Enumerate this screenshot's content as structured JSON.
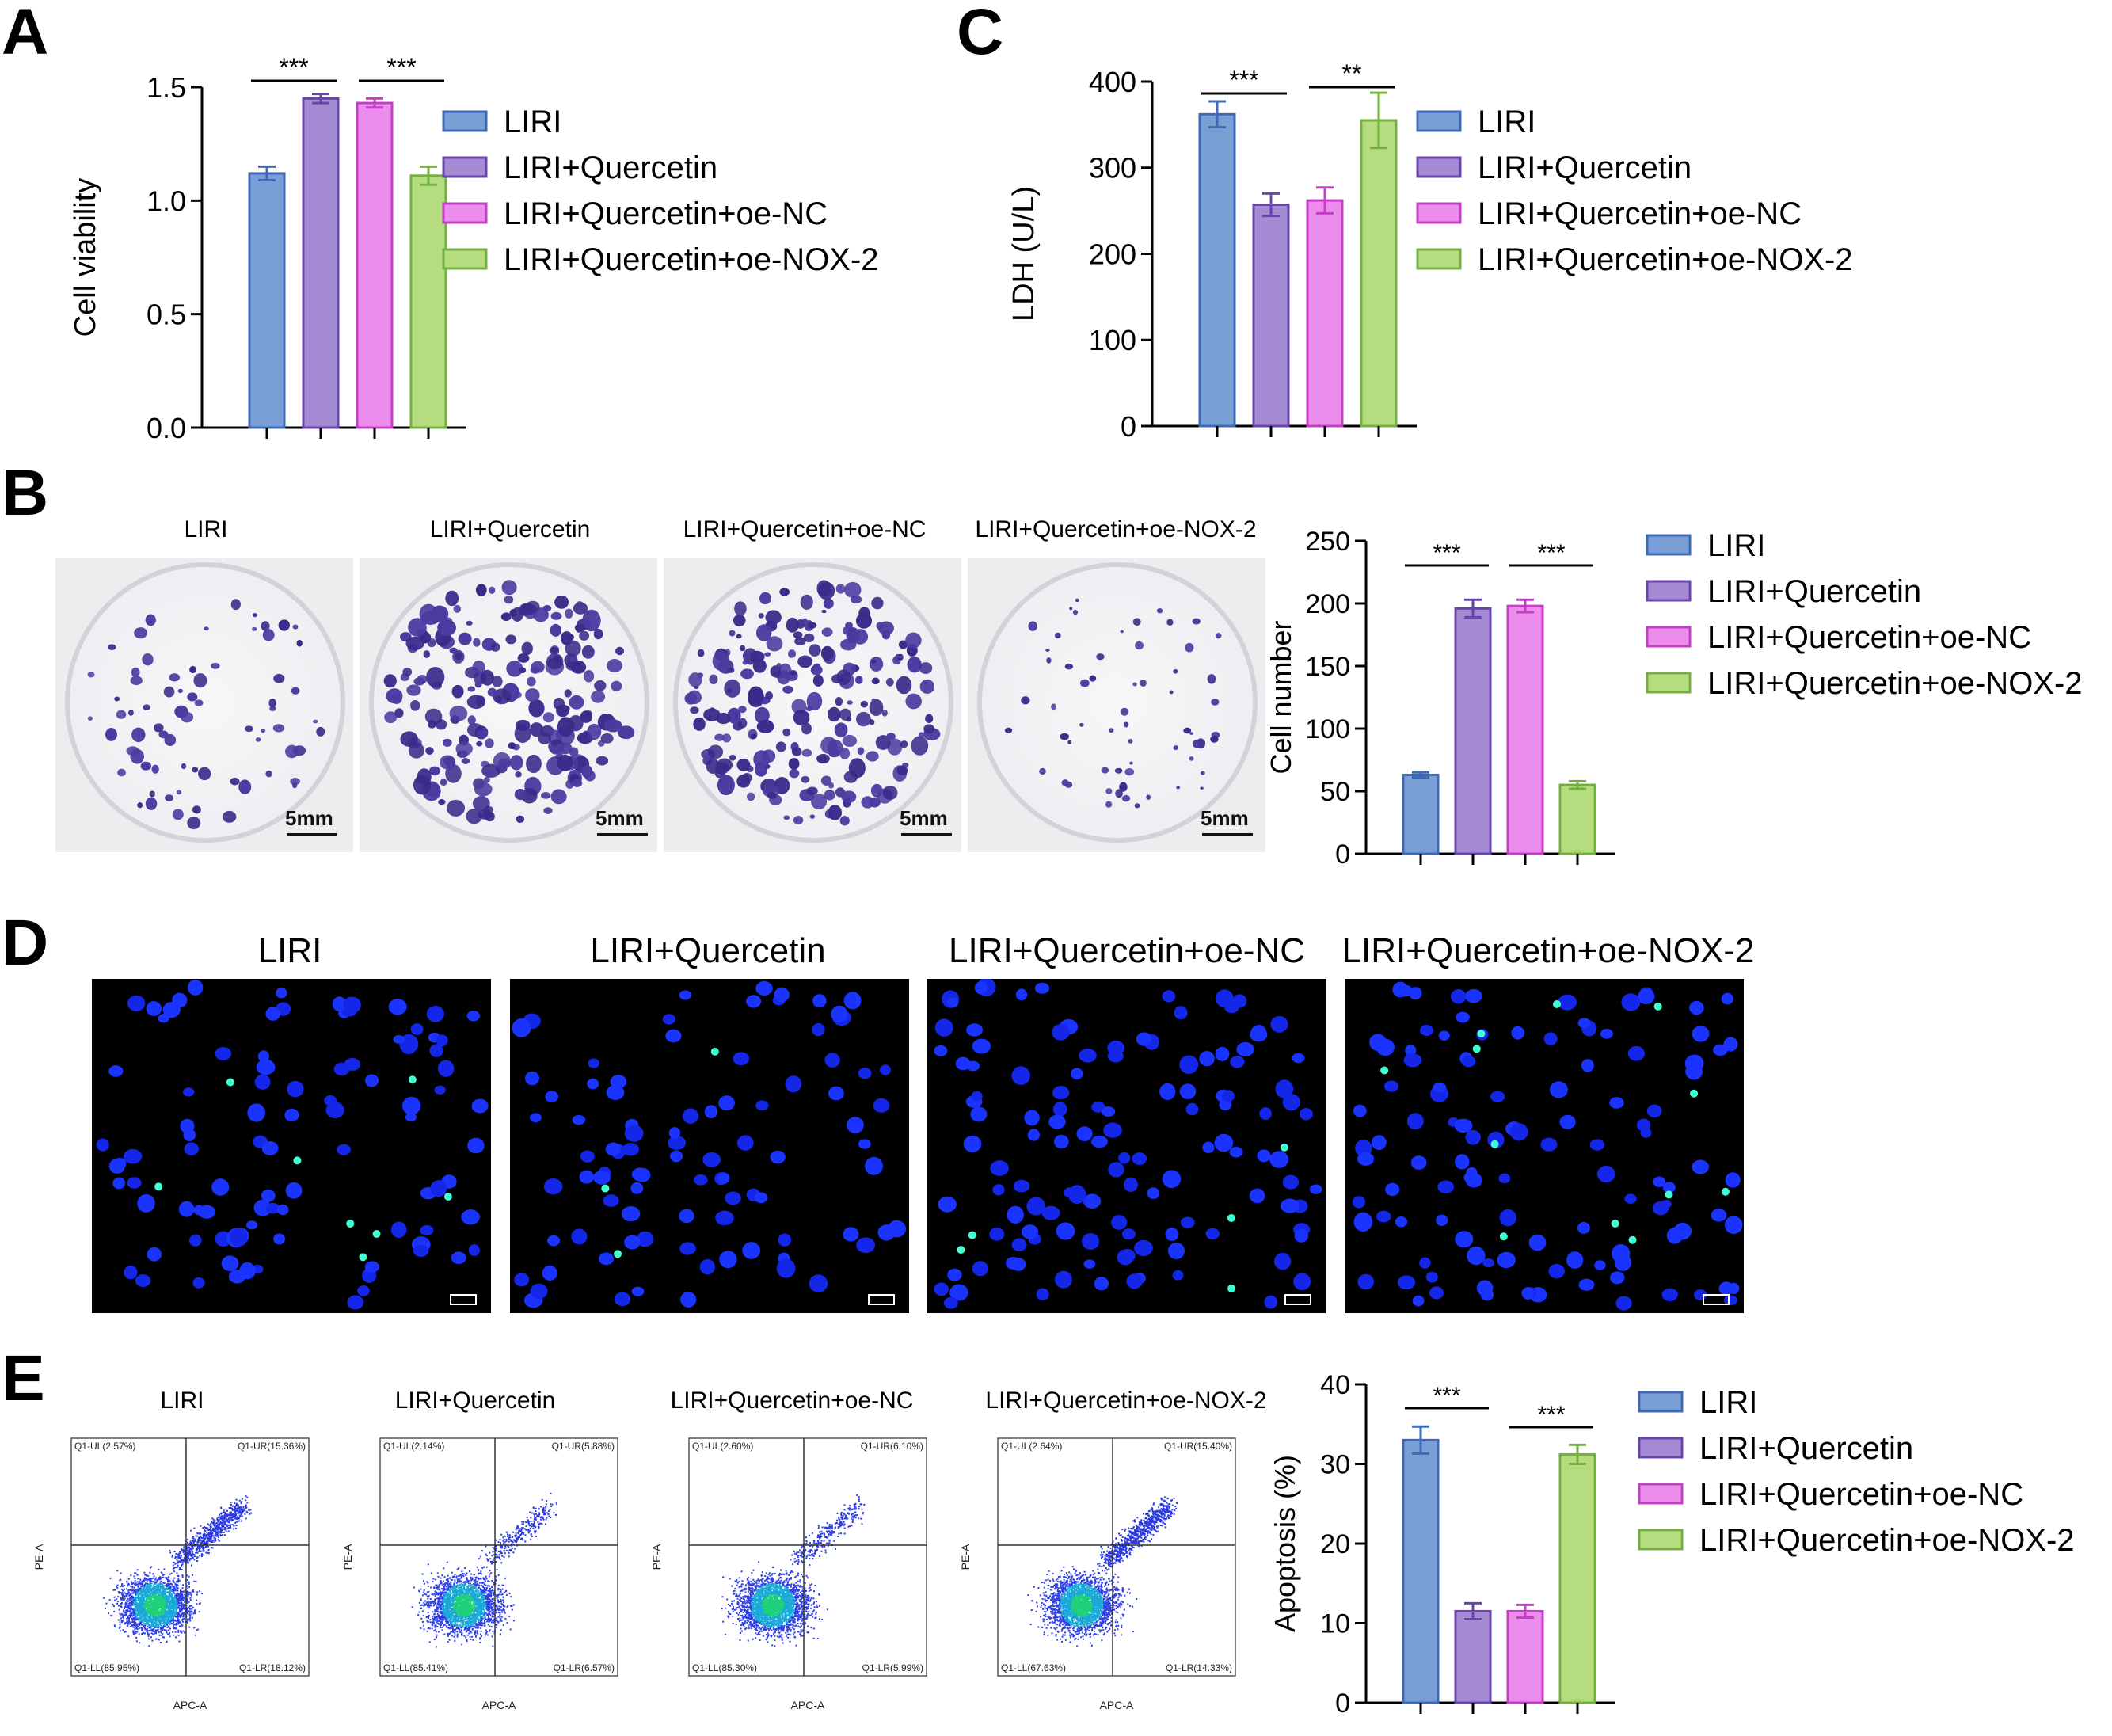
{
  "panels": {
    "A": "A",
    "B": "B",
    "C": "C",
    "D": "D",
    "E": "E"
  },
  "colors": {
    "LIRI": "#7a9fd6",
    "LIRI+Quercetin": "#a58bd4",
    "LIRI+Quercetin+oe-NC": "#ec8cec",
    "LIRI+Quercetin+oe-NOX-2": "#b5dd7f"
  },
  "edge_colors": {
    "LIRI": "#3f69b5",
    "LIRI+Quercetin": "#6a43ad",
    "LIRI+Quercetin+oe-NC": "#c53fc6",
    "LIRI+Quercetin+oe-NOX-2": "#73b03f"
  },
  "legend": [
    "LIRI",
    "LIRI+Quercetin",
    "LIRI+Quercetin+oe-NC",
    "LIRI+Quercetin+oe-NOX-2"
  ],
  "chart_data": [
    {
      "id": "A",
      "type": "bar",
      "categories": [
        "LIRI",
        "LIRI+Quercetin",
        "LIRI+Quercetin+oe-NC",
        "LIRI+Quercetin+oe-NOX-2"
      ],
      "values": [
        1.12,
        1.45,
        1.43,
        1.11
      ],
      "errors": [
        0.03,
        0.02,
        0.02,
        0.04
      ],
      "ylabel": "Cell viability",
      "ylim": [
        0,
        1.5
      ],
      "yticks": [
        "0.0",
        "0.5",
        "1.0",
        "1.5"
      ],
      "yticks_values": [
        0,
        0.5,
        1.0,
        1.5
      ],
      "significance": [
        {
          "pair": [
            0,
            1
          ],
          "label": "***"
        },
        {
          "pair": [
            2,
            3
          ],
          "label": "***"
        }
      ]
    },
    {
      "id": "C",
      "type": "bar",
      "categories": [
        "LIRI",
        "LIRI+Quercetin",
        "LIRI+Quercetin+oe-NC",
        "LIRI+Quercetin+oe-NOX-2"
      ],
      "values": [
        362,
        257,
        262,
        355
      ],
      "errors": [
        15,
        13,
        15,
        32
      ],
      "ylabel": "LDH (U/L)",
      "ylim": [
        0,
        400
      ],
      "yticks": [
        "0",
        "100",
        "200",
        "300",
        "400"
      ],
      "yticks_values": [
        0,
        100,
        200,
        300,
        400
      ],
      "significance": [
        {
          "pair": [
            0,
            1
          ],
          "label": "***"
        },
        {
          "pair": [
            2,
            3
          ],
          "label": "**"
        }
      ]
    },
    {
      "id": "B",
      "type": "bar",
      "categories": [
        "LIRI",
        "LIRI+Quercetin",
        "LIRI+Quercetin+oe-NC",
        "LIRI+Quercetin+oe-NOX-2"
      ],
      "values": [
        63,
        196,
        198,
        55
      ],
      "errors": [
        2,
        7,
        5,
        3
      ],
      "ylabel": "Cell number",
      "ylim": [
        0,
        250
      ],
      "yticks": [
        "0",
        "50",
        "100",
        "150",
        "200",
        "250"
      ],
      "yticks_values": [
        0,
        50,
        100,
        150,
        200,
        250
      ],
      "significance": [
        {
          "pair": [
            0,
            1
          ],
          "label": "***"
        },
        {
          "pair": [
            2,
            3
          ],
          "label": "***"
        }
      ]
    },
    {
      "id": "E",
      "type": "bar",
      "categories": [
        "LIRI",
        "LIRI+Quercetin",
        "LIRI+Quercetin+oe-NC",
        "LIRI+Quercetin+oe-NOX-2"
      ],
      "values": [
        33,
        11.5,
        11.5,
        31.2
      ],
      "errors": [
        1.7,
        1.0,
        0.8,
        1.2
      ],
      "ylabel": "Apoptosis (%)",
      "ylim": [
        0,
        40
      ],
      "yticks": [
        "0",
        "10",
        "20",
        "30",
        "40"
      ],
      "yticks_values": [
        0,
        10,
        20,
        30,
        40
      ],
      "significance": [
        {
          "pair": [
            0,
            1
          ],
          "label": "***"
        },
        {
          "pair": [
            2,
            3
          ],
          "label": "***"
        }
      ]
    }
  ],
  "colony_labels": [
    "LIRI",
    "LIRI+Quercetin",
    "LIRI+Quercetin+oe-NC",
    "LIRI+Quercetin+oe-NOX-2"
  ],
  "colony_scale": "5mm",
  "fluorescence_labels": [
    "LIRI",
    "LIRI+Quercetin",
    "LIRI+Quercetin+oe-NC",
    "LIRI+Quercetin+oe-NOX-2"
  ],
  "flow": {
    "labels": [
      "LIRI",
      "LIRI+Quercetin",
      "LIRI+Quercetin+oe-NC",
      "LIRI+Quercetin+oe-NOX-2"
    ],
    "xlabel": "APC-A",
    "ylabel": "PE-A",
    "quadrants": [
      {
        "UL": "Q1-UL(2.57%)",
        "UR": "Q1-UR(15.36%)",
        "LL": "Q1-LL(85.95%)",
        "LR": "Q1-LR(18.12%)"
      },
      {
        "UL": "Q1-UL(2.14%)",
        "UR": "Q1-UR(5.88%)",
        "LL": "Q1-LL(85.41%)",
        "LR": "Q1-LR(6.57%)"
      },
      {
        "UL": "Q1-UL(2.60%)",
        "UR": "Q1-UR(6.10%)",
        "LL": "Q1-LL(85.30%)",
        "LR": "Q1-LR(5.99%)"
      },
      {
        "UL": "Q1-UL(2.64%)",
        "UR": "Q1-UR(15.40%)",
        "LL": "Q1-LL(67.63%)",
        "LR": "Q1-LR(14.33%)"
      }
    ]
  }
}
